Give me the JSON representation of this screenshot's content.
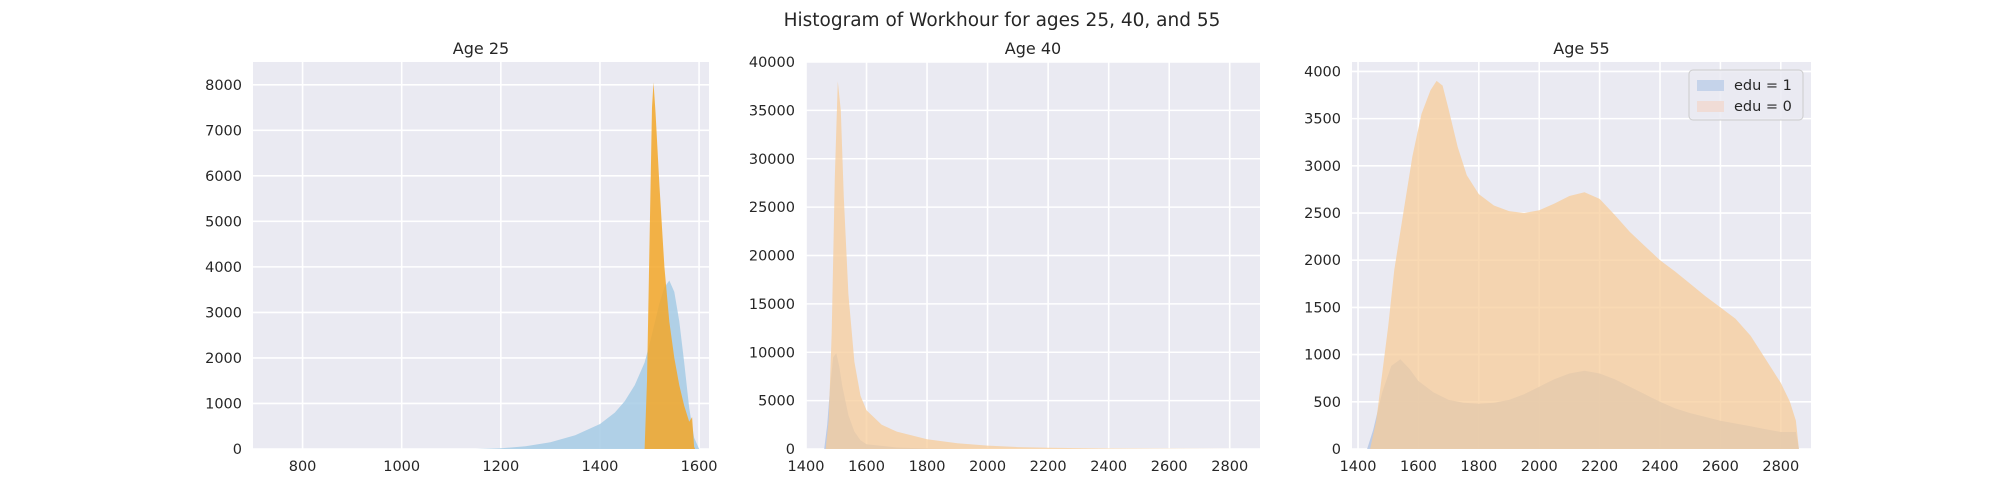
{
  "figure": {
    "suptitle": "Histogram of Workhour for ages 25, 40, and 55"
  },
  "colors": {
    "background": "#eaeaf2",
    "grid": "#ffffff",
    "edu1_panel1": "#a6cbe5",
    "edu0_panel1": "#f3a728",
    "edu1": "#b4c5e4",
    "edu0": "#f7cc9a",
    "edu1_legend_patch": "#c5d3ea",
    "edu0_legend_patch": "#f0dcd6"
  },
  "legend": {
    "placement": "upper right",
    "entries": [
      "edu = 1",
      "edu = 0"
    ]
  },
  "chart_data": [
    {
      "type": "histogram",
      "title": "Age 25",
      "xlim": [
        700,
        1620
      ],
      "ylim": [
        0,
        8500
      ],
      "xticks": [
        800,
        1000,
        1200,
        1400,
        1600
      ],
      "yticks": [
        0,
        1000,
        2000,
        3000,
        4000,
        5000,
        6000,
        7000,
        8000
      ],
      "grid": true,
      "series": [
        {
          "name": "edu = 1",
          "points": [
            [
              1150,
              0
            ],
            [
              1200,
              15
            ],
            [
              1250,
              60
            ],
            [
              1300,
              150
            ],
            [
              1350,
              300
            ],
            [
              1400,
              550
            ],
            [
              1430,
              800
            ],
            [
              1450,
              1050
            ],
            [
              1470,
              1400
            ],
            [
              1490,
              1900
            ],
            [
              1500,
              2300
            ],
            [
              1510,
              2750
            ],
            [
              1520,
              3200
            ],
            [
              1530,
              3550
            ],
            [
              1540,
              3700
            ],
            [
              1550,
              3450
            ],
            [
              1560,
              2800
            ],
            [
              1570,
              1900
            ],
            [
              1580,
              900
            ],
            [
              1590,
              250
            ],
            [
              1600,
              0
            ]
          ]
        },
        {
          "name": "edu = 0",
          "points": [
            [
              1490,
              0
            ],
            [
              1495,
              1500
            ],
            [
              1500,
              4500
            ],
            [
              1505,
              7500
            ],
            [
              1508,
              8050
            ],
            [
              1512,
              7400
            ],
            [
              1520,
              5800
            ],
            [
              1530,
              4000
            ],
            [
              1540,
              2800
            ],
            [
              1550,
              2000
            ],
            [
              1560,
              1400
            ],
            [
              1570,
              950
            ],
            [
              1580,
              600
            ],
            [
              1586,
              700
            ],
            [
              1590,
              50
            ],
            [
              1592,
              0
            ]
          ]
        }
      ]
    },
    {
      "type": "histogram",
      "title": "Age 40",
      "xlim": [
        1400,
        2900
      ],
      "ylim": [
        0,
        40000
      ],
      "xticks": [
        1400,
        1600,
        1800,
        2000,
        2200,
        2400,
        2600,
        2800
      ],
      "yticks": [
        0,
        5000,
        10000,
        15000,
        20000,
        25000,
        30000,
        35000,
        40000
      ],
      "grid": true,
      "series": [
        {
          "name": "edu = 1",
          "points": [
            [
              1460,
              0
            ],
            [
              1470,
              2500
            ],
            [
              1480,
              6500
            ],
            [
              1490,
              9500
            ],
            [
              1500,
              9900
            ],
            [
              1510,
              8500
            ],
            [
              1520,
              6500
            ],
            [
              1540,
              3500
            ],
            [
              1560,
              1800
            ],
            [
              1580,
              900
            ],
            [
              1600,
              500
            ],
            [
              1700,
              150
            ],
            [
              1800,
              50
            ],
            [
              2000,
              0
            ]
          ]
        },
        {
          "name": "edu = 0",
          "points": [
            [
              1465,
              0
            ],
            [
              1475,
              3000
            ],
            [
              1485,
              12000
            ],
            [
              1495,
              28000
            ],
            [
              1505,
              38000
            ],
            [
              1515,
              35000
            ],
            [
              1525,
              26000
            ],
            [
              1540,
              16000
            ],
            [
              1560,
              9000
            ],
            [
              1580,
              5500
            ],
            [
              1600,
              4000
            ],
            [
              1650,
              2500
            ],
            [
              1700,
              1800
            ],
            [
              1800,
              1000
            ],
            [
              1900,
              600
            ],
            [
              2000,
              350
            ],
            [
              2100,
              200
            ],
            [
              2200,
              120
            ],
            [
              2400,
              50
            ],
            [
              2600,
              20
            ],
            [
              2820,
              0
            ]
          ]
        }
      ]
    },
    {
      "type": "histogram",
      "title": "Age 55",
      "xlim": [
        1380,
        2900
      ],
      "ylim": [
        0,
        4100
      ],
      "xticks": [
        1400,
        1600,
        1800,
        2000,
        2200,
        2400,
        2600,
        2800
      ],
      "yticks": [
        0,
        500,
        1000,
        1500,
        2000,
        2500,
        3000,
        3500,
        4000
      ],
      "grid": true,
      "series": [
        {
          "name": "edu = 1",
          "points": [
            [
              1430,
              0
            ],
            [
              1450,
              200
            ],
            [
              1480,
              600
            ],
            [
              1510,
              880
            ],
            [
              1540,
              950
            ],
            [
              1570,
              850
            ],
            [
              1600,
              720
            ],
            [
              1650,
              600
            ],
            [
              1700,
              520
            ],
            [
              1750,
              490
            ],
            [
              1800,
              480
            ],
            [
              1850,
              490
            ],
            [
              1900,
              520
            ],
            [
              1950,
              580
            ],
            [
              2000,
              660
            ],
            [
              2050,
              740
            ],
            [
              2100,
              800
            ],
            [
              2150,
              830
            ],
            [
              2200,
              800
            ],
            [
              2250,
              740
            ],
            [
              2300,
              660
            ],
            [
              2350,
              580
            ],
            [
              2400,
              500
            ],
            [
              2450,
              430
            ],
            [
              2500,
              380
            ],
            [
              2550,
              340
            ],
            [
              2600,
              300
            ],
            [
              2650,
              270
            ],
            [
              2700,
              240
            ],
            [
              2750,
              210
            ],
            [
              2800,
              180
            ],
            [
              2850,
              180
            ],
            [
              2860,
              0
            ]
          ]
        },
        {
          "name": "edu = 0",
          "points": [
            [
              1440,
              0
            ],
            [
              1460,
              300
            ],
            [
              1480,
              800
            ],
            [
              1500,
              1300
            ],
            [
              1520,
              1900
            ],
            [
              1550,
              2500
            ],
            [
              1580,
              3100
            ],
            [
              1610,
              3550
            ],
            [
              1640,
              3800
            ],
            [
              1660,
              3900
            ],
            [
              1680,
              3850
            ],
            [
              1700,
              3600
            ],
            [
              1730,
              3200
            ],
            [
              1760,
              2900
            ],
            [
              1800,
              2700
            ],
            [
              1850,
              2580
            ],
            [
              1900,
              2520
            ],
            [
              1950,
              2500
            ],
            [
              2000,
              2530
            ],
            [
              2050,
              2600
            ],
            [
              2100,
              2680
            ],
            [
              2150,
              2720
            ],
            [
              2200,
              2650
            ],
            [
              2250,
              2480
            ],
            [
              2300,
              2300
            ],
            [
              2350,
              2150
            ],
            [
              2400,
              2000
            ],
            [
              2450,
              1880
            ],
            [
              2500,
              1750
            ],
            [
              2550,
              1620
            ],
            [
              2600,
              1500
            ],
            [
              2650,
              1380
            ],
            [
              2700,
              1200
            ],
            [
              2750,
              950
            ],
            [
              2800,
              700
            ],
            [
              2830,
              500
            ],
            [
              2850,
              300
            ],
            [
              2860,
              0
            ]
          ]
        }
      ]
    }
  ]
}
